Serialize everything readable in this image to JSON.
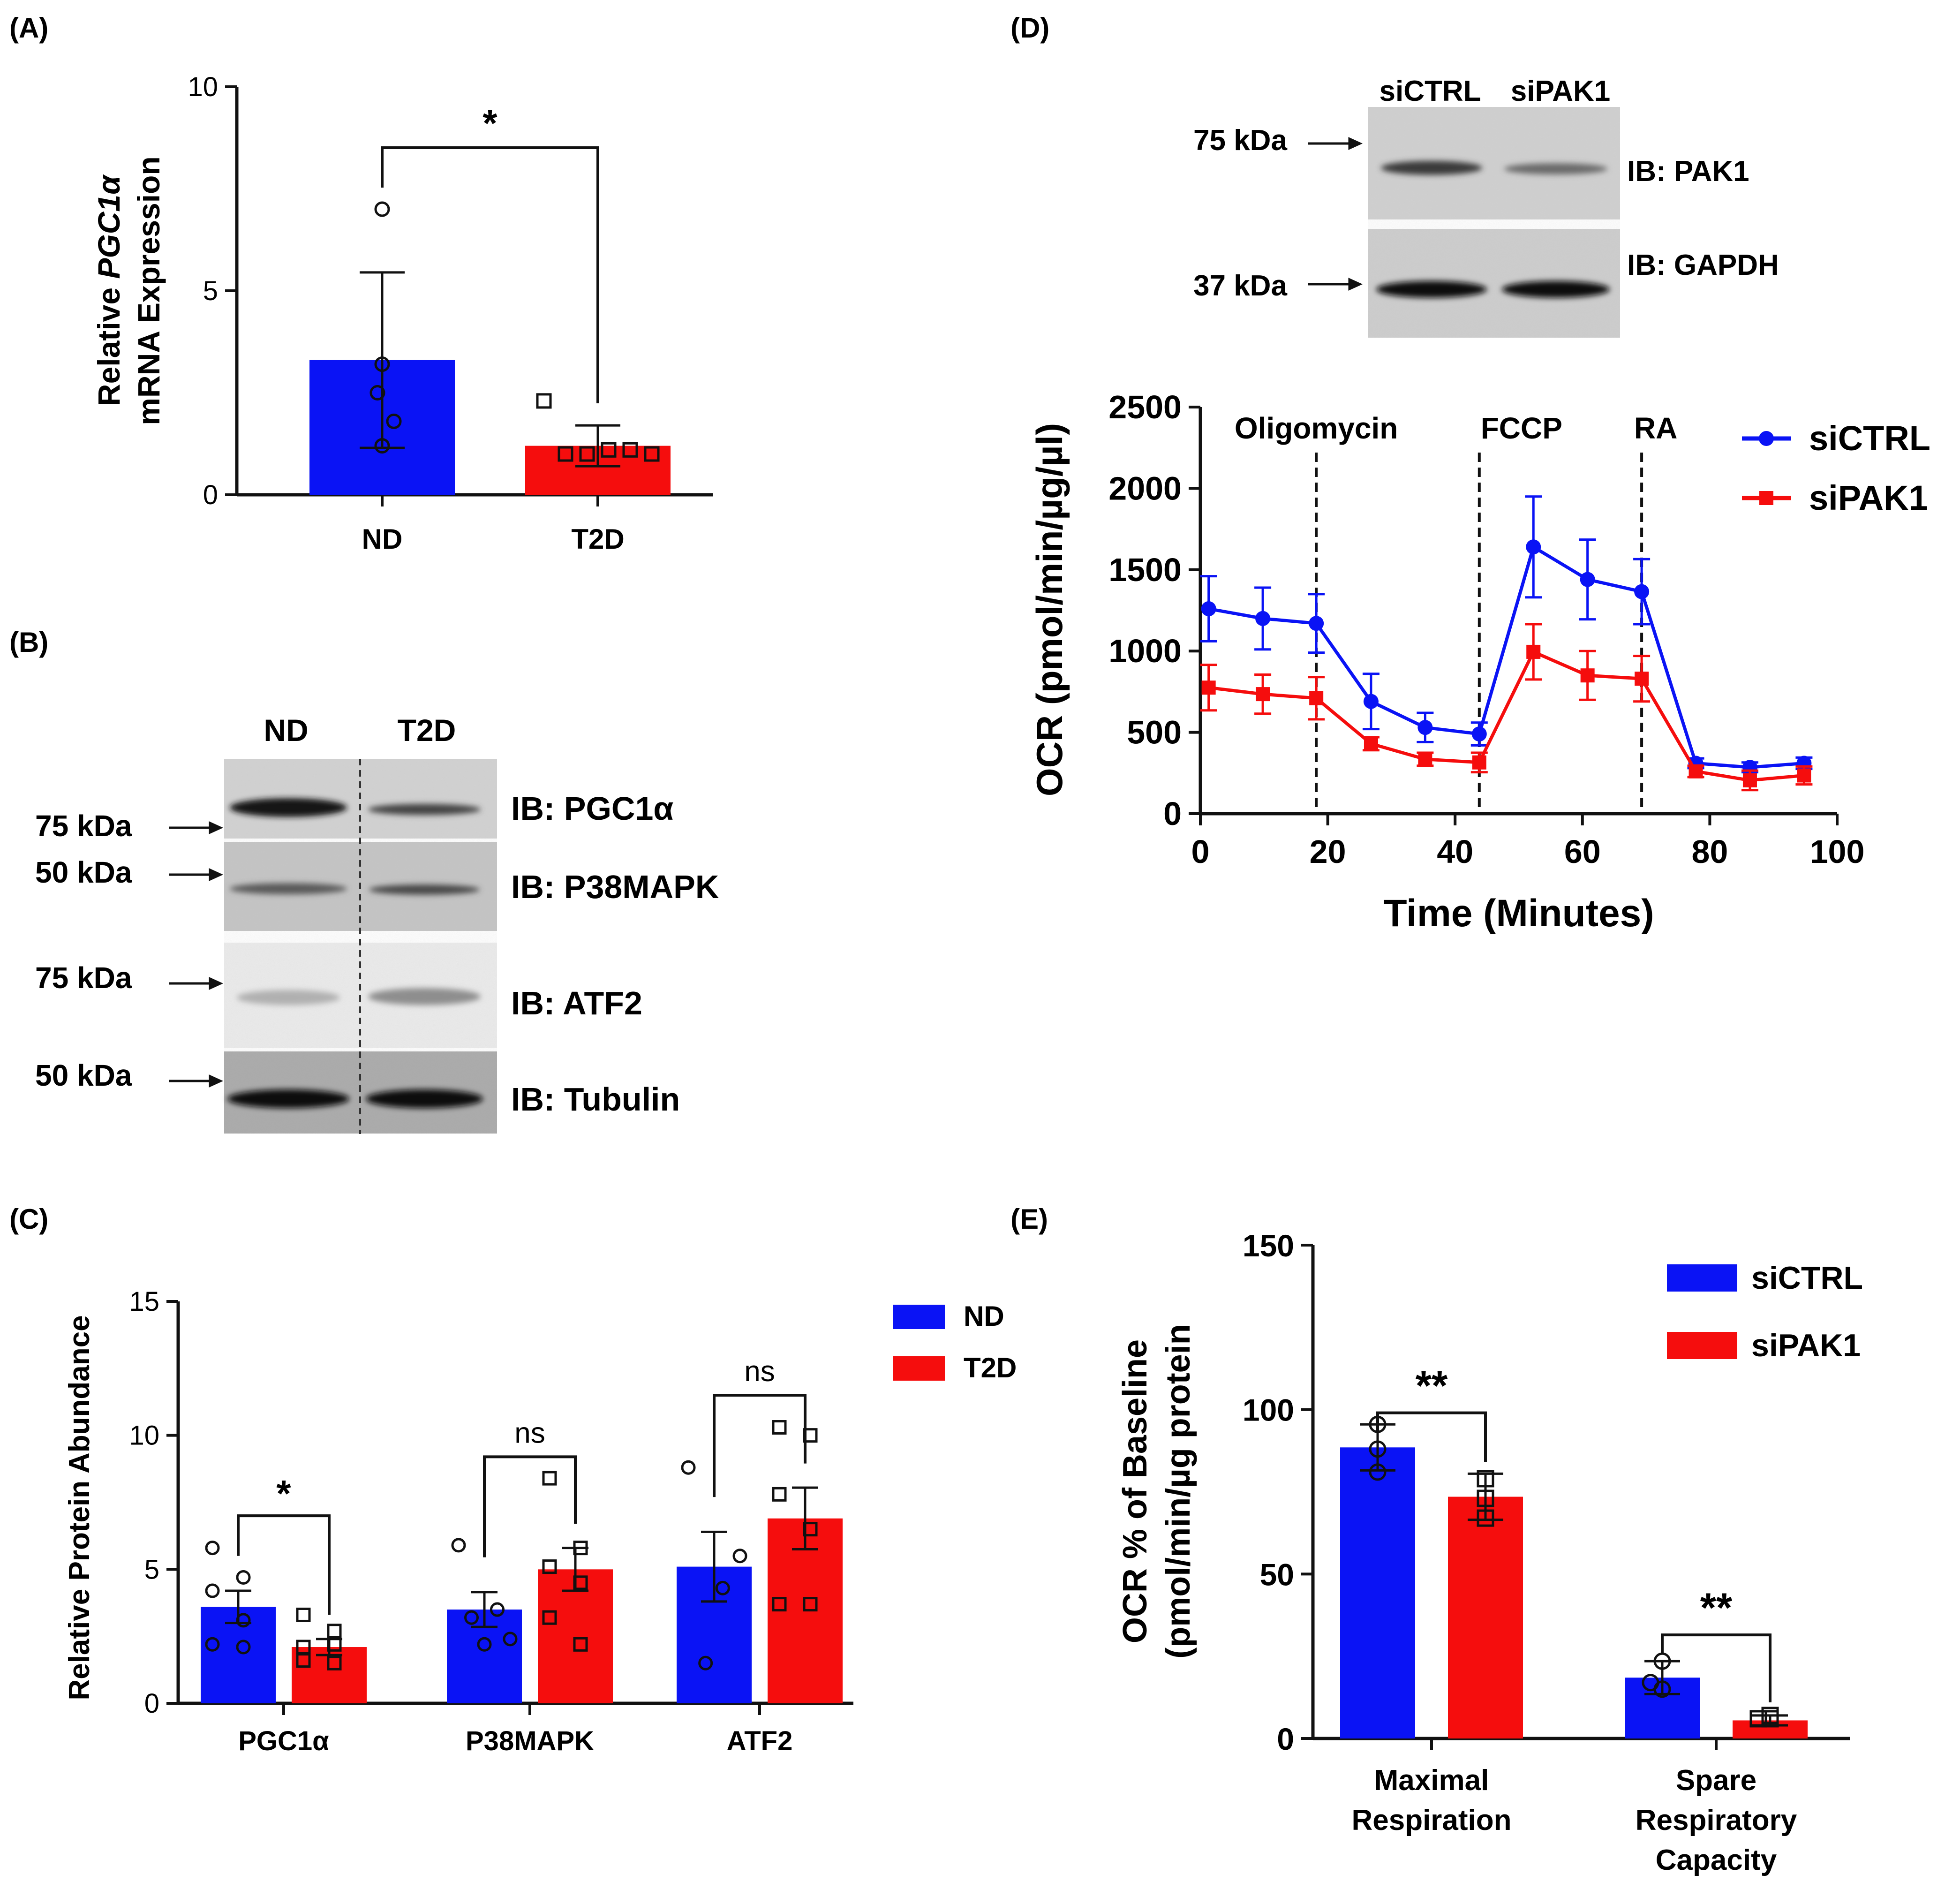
{
  "panel_labels": {
    "a": "(A)",
    "b": "(B)",
    "c": "(C)",
    "d": "(D)",
    "e": "(E)"
  },
  "colors": {
    "blue": "#0a13f5",
    "red": "#f50d0d",
    "black": "#111111",
    "blot_bg": "#d6d6d6"
  },
  "chart_data": [
    {
      "id": "A",
      "type": "bar",
      "ylabel_line1_pre": "Relative ",
      "ylabel_line1_italic": "PGC1α",
      "ylabel_line2": "mRNA Expression",
      "categories": [
        "ND",
        "T2D"
      ],
      "values": [
        3.3,
        1.2
      ],
      "errors": [
        2.15,
        0.5
      ],
      "points": [
        [
          7.0,
          3.2,
          2.5,
          1.8,
          1.2
        ],
        [
          2.3,
          1.0,
          1.0,
          1.1,
          1.1,
          1.0
        ]
      ],
      "ylim": [
        0,
        10
      ],
      "yticks": [
        "0",
        "5",
        "10"
      ],
      "significance": "*"
    },
    {
      "id": "C",
      "type": "bar",
      "ylabel": "Relative Protein Abundance",
      "categories": [
        "PGC1α",
        "P38MAPK",
        "ATF2"
      ],
      "series": [
        {
          "name": "ND",
          "values": [
            3.6,
            3.5,
            5.1
          ],
          "errors": [
            0.6,
            0.65,
            1.3
          ]
        },
        {
          "name": "T2D",
          "values": [
            2.1,
            5.0,
            6.9
          ],
          "errors": [
            0.3,
            0.8,
            1.15
          ]
        }
      ],
      "points": {
        "ND": [
          [
            5.8,
            4.7,
            4.2,
            3.1,
            2.2,
            2.1
          ],
          [
            5.9,
            3.5,
            3.2,
            2.4,
            2.2
          ],
          [
            8.8,
            5.5,
            4.3,
            1.5
          ]
        ],
        "T2D": [
          [
            3.3,
            2.7,
            2.1,
            1.5,
            1.6,
            2.2
          ],
          [
            8.4,
            5.8,
            5.1,
            4.5,
            3.2,
            2.2
          ],
          [
            10.3,
            10.0,
            7.8,
            6.5,
            3.7,
            3.7
          ]
        ]
      },
      "ylim": [
        0,
        15
      ],
      "yticks": [
        "0",
        "5",
        "10",
        "15"
      ],
      "significance": [
        "*",
        "ns",
        "ns"
      ]
    },
    {
      "id": "D",
      "type": "line",
      "ylabel": "OCR (pmol/min/µg/µl)",
      "xlabel": "Time (Minutes)",
      "x": [
        1.3,
        9.8,
        18.2,
        26.8,
        35.3,
        43.8,
        52.3,
        60.8,
        69.3,
        77.8,
        86.3,
        94.8
      ],
      "series": [
        {
          "name": "siCTRL",
          "values": [
            1260,
            1200,
            1170,
            690,
            530,
            490,
            1640,
            1440,
            1365,
            310,
            285,
            310
          ],
          "errors": [
            200,
            190,
            180,
            170,
            90,
            70,
            310,
            245,
            200,
            30,
            30,
            35
          ]
        },
        {
          "name": "siPAK1",
          "values": [
            775,
            735,
            710,
            430,
            335,
            315,
            995,
            850,
            830,
            260,
            205,
            235
          ],
          "errors": [
            140,
            120,
            130,
            40,
            40,
            60,
            170,
            150,
            140,
            35,
            60,
            55
          ]
        }
      ],
      "xlim": [
        0,
        100
      ],
      "ylim": [
        0,
        2500
      ],
      "xticks": [
        "0",
        "20",
        "40",
        "60",
        "80",
        "100"
      ],
      "yticks": [
        "0",
        "500",
        "1000",
        "1500",
        "2000",
        "2500"
      ],
      "injections": [
        {
          "label": "Oligomycin",
          "x": 18.2
        },
        {
          "label": "FCCP",
          "x": 43.8
        },
        {
          "label": "RA",
          "x": 69.3
        }
      ]
    },
    {
      "id": "E",
      "type": "bar",
      "ylabel_line1": "OCR % of Baseline",
      "ylabel_line2": "(pmol/min/µg protein",
      "categories_lines": [
        [
          "Maximal",
          "Respiration"
        ],
        [
          "Spare",
          "Respiratory",
          "Capacity"
        ]
      ],
      "series": [
        {
          "name": "siCTRL",
          "values": [
            88.5,
            18.5
          ],
          "errors": [
            7,
            5
          ]
        },
        {
          "name": "siPAK1",
          "values": [
            73.5,
            5.5
          ],
          "errors": [
            7,
            1.5
          ]
        }
      ],
      "points": {
        "siCTRL": [
          [
            95.5,
            88,
            81
          ],
          [
            23.5,
            17,
            15
          ]
        ],
        "siPAK1": [
          [
            79,
            73,
            67
          ],
          [
            7,
            6,
            6
          ]
        ]
      },
      "ylim": [
        0,
        150
      ],
      "yticks": [
        "0",
        "50",
        "100",
        "150"
      ],
      "significance": [
        "**",
        "**"
      ]
    }
  ],
  "blot_b": {
    "lanes": [
      "ND",
      "T2D"
    ],
    "rows": [
      {
        "marker": "75 kDa",
        "ib": "IB: PGC1α"
      },
      {
        "marker": "50 kDa",
        "ib": "IB: P38MAPK"
      },
      {
        "marker": "75 kDa",
        "ib": "IB: ATF2"
      },
      {
        "marker": "50 kDa",
        "ib": "IB: Tubulin"
      }
    ]
  },
  "blot_d": {
    "lanes": [
      "siCTRL",
      "siPAK1"
    ],
    "rows": [
      {
        "marker": "75 kDa",
        "ib": "IB: PAK1"
      },
      {
        "marker": "37 kDa",
        "ib": "IB: GAPDH"
      }
    ]
  }
}
